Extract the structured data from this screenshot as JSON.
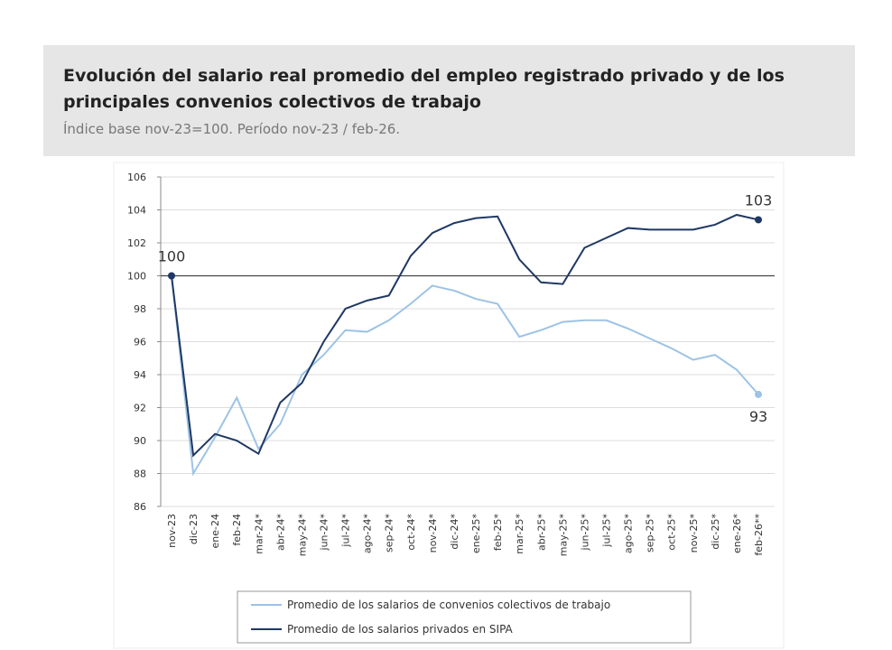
{
  "chart_data": {
    "type": "line",
    "title": "Evolución del salario real promedio del empleo registrado privado y de los principales convenios colectivos de trabajo",
    "subtitle": "Índice base nov-23=100. Período nov-23 / feb-26.",
    "categories": [
      "nov-23",
      "dic-23",
      "ene-24",
      "feb-24",
      "mar-24*",
      "abr-24*",
      "may-24*",
      "jun-24*",
      "jul-24*",
      "ago-24*",
      "sep-24*",
      "oct-24*",
      "nov-24*",
      "dic-24*",
      "ene-25*",
      "feb-25*",
      "mar-25*",
      "abr-25*",
      "may-25*",
      "jun-25*",
      "jul-25*",
      "ago-25*",
      "sep-25*",
      "oct-25*",
      "nov-25*",
      "dic-25*",
      "ene-26*",
      "feb-26**"
    ],
    "series": [
      {
        "name": "Promedio de los salarios de convenios colectivos de trabajo",
        "color": "#9dc3e6",
        "values": [
          100,
          88.0,
          90.2,
          92.6,
          89.5,
          91.0,
          94.0,
          95.2,
          96.7,
          96.6,
          97.3,
          98.3,
          99.4,
          99.1,
          98.6,
          98.3,
          96.3,
          96.7,
          97.2,
          97.3,
          97.3,
          96.8,
          96.2,
          95.6,
          94.9,
          95.2,
          94.3,
          92.8
        ],
        "value_labels": [
          null,
          null,
          null,
          null,
          null,
          null,
          null,
          null,
          null,
          null,
          null,
          null,
          null,
          null,
          null,
          null,
          null,
          null,
          null,
          null,
          null,
          null,
          null,
          null,
          null,
          null,
          null,
          "93"
        ]
      },
      {
        "name": "Promedio de los salarios privados en SIPA",
        "color": "#1f3864",
        "values": [
          100,
          89.1,
          90.4,
          90.0,
          89.2,
          92.3,
          93.5,
          96.0,
          98.0,
          98.5,
          98.8,
          101.2,
          102.6,
          103.2,
          103.5,
          103.6,
          101.0,
          99.6,
          99.5,
          101.7,
          102.3,
          102.9,
          102.8,
          102.8,
          102.8,
          103.1,
          103.7,
          103.4
        ],
        "value_labels": [
          "100",
          null,
          null,
          null,
          null,
          null,
          null,
          null,
          null,
          null,
          null,
          null,
          null,
          null,
          null,
          null,
          null,
          null,
          null,
          null,
          null,
          null,
          null,
          null,
          null,
          null,
          null,
          "103"
        ]
      }
    ],
    "ylim": [
      86,
      106
    ],
    "yticks": [
      86,
      88,
      90,
      92,
      94,
      96,
      98,
      100,
      102,
      104,
      106
    ],
    "reference_line": 100,
    "grid": true
  }
}
